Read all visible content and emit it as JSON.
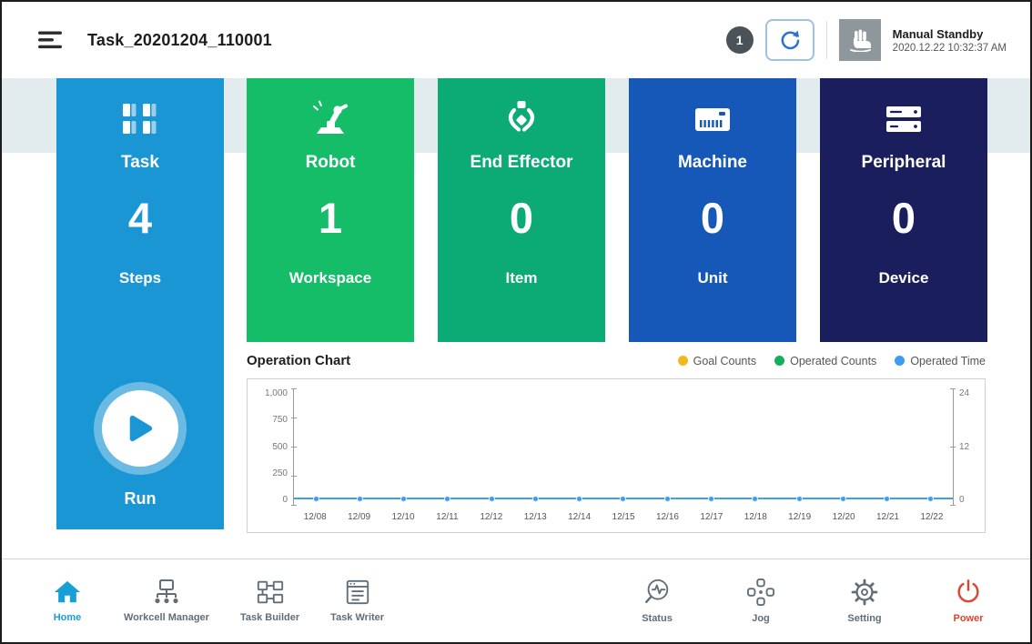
{
  "header": {
    "title": "Task_20201204_110001",
    "badge_count": "1",
    "mode": {
      "label": "Manual Standby",
      "timestamp": "2020.12.22 10:32:37 AM"
    }
  },
  "colors": {
    "task_card": "#1b96d5",
    "robot_card": "#16bd68",
    "end_effector_card": "#0caa74",
    "machine_card": "#1558b8",
    "peripheral_card": "#1a1e5c",
    "home_active": "#17a0d6",
    "power": "#e0432e",
    "legend_goal": "#f3b71d",
    "legend_operated_counts": "#11b05c",
    "legend_operated_time": "#3e9df3"
  },
  "task_card": {
    "title": "Task",
    "value": "4",
    "unit": "Steps",
    "run_label": "Run"
  },
  "cards": [
    {
      "title": "Robot",
      "value": "1",
      "unit": "Workspace",
      "icon": "robot-arm-icon",
      "color": "#16bd68"
    },
    {
      "title": "End Effector",
      "value": "0",
      "unit": "Item",
      "icon": "gripper-icon",
      "color": "#0caa74"
    },
    {
      "title": "Machine",
      "value": "0",
      "unit": "Unit",
      "icon": "machine-icon",
      "color": "#1558b8"
    },
    {
      "title": "Peripheral",
      "value": "0",
      "unit": "Device",
      "icon": "peripheral-icon",
      "color": "#1a1e5c"
    }
  ],
  "chart": {
    "title": "Operation Chart",
    "legend": [
      {
        "label": "Goal Counts",
        "color": "#f3b71d"
      },
      {
        "label": "Operated Counts",
        "color": "#11b05c"
      },
      {
        "label": "Operated Time",
        "color": "#3e9df3"
      }
    ],
    "chart_data": {
      "type": "line",
      "title": "Operation Chart",
      "x": [
        "12/08",
        "12/09",
        "12/10",
        "12/11",
        "12/12",
        "12/13",
        "12/14",
        "12/15",
        "12/16",
        "12/17",
        "12/18",
        "12/19",
        "12/20",
        "12/21",
        "12/22"
      ],
      "series": [
        {
          "name": "Goal Counts",
          "axis": "left",
          "color": "#f3b71d",
          "values": [
            0,
            0,
            0,
            0,
            0,
            0,
            0,
            0,
            0,
            0,
            0,
            0,
            0,
            0,
            0
          ]
        },
        {
          "name": "Operated Counts",
          "axis": "left",
          "color": "#11b05c",
          "values": [
            0,
            0,
            0,
            0,
            0,
            0,
            0,
            0,
            0,
            0,
            0,
            0,
            0,
            0,
            0
          ]
        },
        {
          "name": "Operated Time",
          "axis": "right",
          "color": "#3e9df3",
          "values": [
            0,
            0,
            0,
            0,
            0,
            0,
            0,
            0,
            0,
            0,
            0,
            0,
            0,
            0,
            0
          ]
        }
      ],
      "left_axis": {
        "ticks": [
          "1,000",
          "750",
          "500",
          "250",
          "0"
        ],
        "range": [
          0,
          1000
        ]
      },
      "right_axis": {
        "ticks": [
          "24",
          "12",
          "0"
        ],
        "range": [
          0,
          24
        ]
      },
      "grid": false,
      "legend_position": "top-right"
    }
  },
  "nav": {
    "left": [
      {
        "label": "Home"
      },
      {
        "label": "Workcell Manager"
      },
      {
        "label": "Task Builder"
      },
      {
        "label": "Task Writer"
      }
    ],
    "right": [
      {
        "label": "Status"
      },
      {
        "label": "Jog"
      },
      {
        "label": "Setting"
      },
      {
        "label": "Power"
      }
    ]
  }
}
